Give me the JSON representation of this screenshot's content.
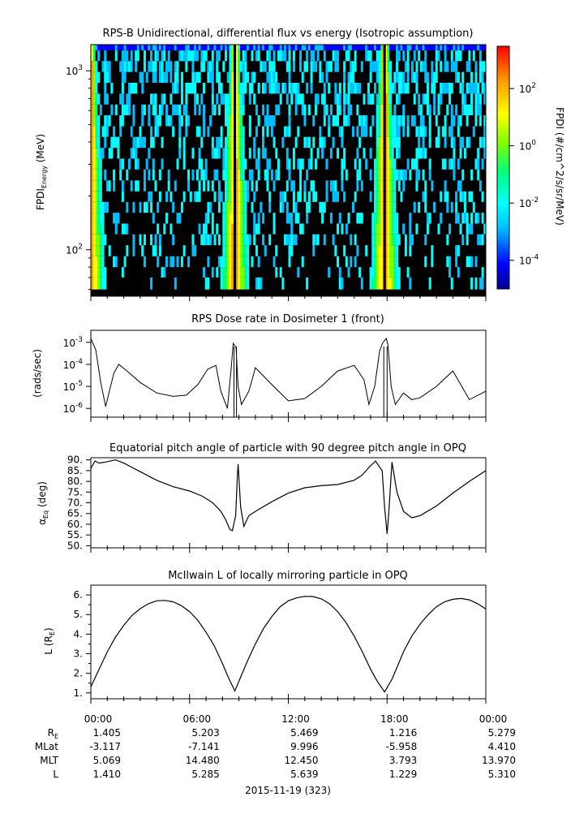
{
  "chart_data": [
    {
      "type": "heatmap",
      "title": "RPS-B  Unidirectional, differential flux vs energy (Isotropic assumption)",
      "ylabel": "FPDI",
      "ylabel_sub": "Energy",
      "ylabel_unit": " (MeV)",
      "yscale": "log",
      "ylim": [
        55,
        1400
      ],
      "ytick_labels": [
        {
          "base": "10",
          "exp": "3",
          "value": 1000
        },
        {
          "base": "10",
          "exp": "2",
          "value": 100
        }
      ],
      "xlim_hours": [
        0,
        24
      ],
      "energies_mev": [
        60,
        70,
        80,
        92,
        106,
        122,
        140,
        161,
        185,
        212,
        244,
        281,
        323,
        371,
        427,
        490,
        564,
        648,
        745,
        857,
        985,
        1133,
        1300
      ],
      "radiation_belt_passes_hours": [
        0.0,
        8.75,
        17.85
      ],
      "colorbar": {
        "label": "FPDI (#/cm^2/s/sr/MeV)",
        "scale": "log",
        "range": [
          1e-05,
          3000
        ],
        "ticks": [
          {
            "base": "10",
            "exp": "2",
            "value": 100
          },
          {
            "base": "10",
            "exp": "0",
            "value": 1
          },
          {
            "base": "10",
            "exp": "-2",
            "value": 0.01
          },
          {
            "base": "10",
            "exp": "-4",
            "value": 0.0001
          }
        ],
        "colors": [
          "#00008b",
          "#0000ff",
          "#00bfff",
          "#00ffff",
          "#00ff7f",
          "#7fff00",
          "#ffff00",
          "#ff9900",
          "#ff0000"
        ]
      }
    },
    {
      "type": "line",
      "title": "RPS  Dose rate in Dosimeter 1 (front)",
      "ylabel": "(rads/sec)",
      "yscale": "log",
      "ylim": [
        4e-07,
        0.0035
      ],
      "ytick_labels": [
        {
          "base": "10",
          "exp": "-3",
          "value": 0.001
        },
        {
          "base": "10",
          "exp": "-4",
          "value": 0.0001
        },
        {
          "base": "10",
          "exp": "-5",
          "value": 1e-05
        },
        {
          "base": "10",
          "exp": "-6",
          "value": 1e-06
        }
      ],
      "x_hours": [
        0.0,
        0.3,
        0.6,
        0.9,
        1.1,
        1.4,
        1.7,
        2.2,
        3.0,
        4.0,
        5.0,
        5.8,
        6.5,
        7.1,
        7.6,
        7.9,
        8.3,
        8.55,
        8.65,
        8.82,
        8.95,
        9.15,
        9.6,
        10.0,
        11.0,
        12.0,
        13.0,
        14.0,
        15.0,
        16.0,
        16.6,
        16.9,
        17.25,
        17.55,
        17.72,
        17.95,
        18.05,
        18.25,
        18.5,
        19.0,
        19.5,
        20.0,
        21.0,
        22.0,
        23.0,
        24.0
      ],
      "values": [
        0.0015,
        0.00045,
        1.5e-05,
        1.2e-06,
        5e-06,
        4e-05,
        0.0001,
        5e-05,
        1.5e-05,
        5e-06,
        3.5e-06,
        4e-06,
        1.2e-05,
        6e-05,
        9e-05,
        6e-06,
        1e-06,
        0.0001,
        0.0009,
        0.0006,
        1e-05,
        1.5e-06,
        6e-06,
        7e-05,
        1.2e-05,
        2.2e-06,
        2.8e-06,
        1e-05,
        5e-05,
        9e-05,
        2e-05,
        1.5e-06,
        1e-05,
        0.0004,
        0.0009,
        0.0015,
        0.0008,
        1e-05,
        1.5e-06,
        5e-06,
        2.5e-06,
        3e-06,
        1e-05,
        5e-05,
        2.5e-06,
        6e-06
      ]
    },
    {
      "type": "line",
      "title": "Equatorial pitch angle of particle with 90 degree pitch angle in OPQ",
      "ylabel": "α",
      "ylabel_sub": "Eq",
      "ylabel_unit": " (deg)",
      "ylim": [
        49,
        91
      ],
      "ytick_labels": [
        "90.",
        "85.",
        "80.",
        "75.",
        "70.",
        "65.",
        "60.",
        "55.",
        "50."
      ],
      "ytick_values": [
        90,
        85,
        80,
        75,
        70,
        65,
        60,
        55,
        50
      ],
      "x_hours": [
        0.0,
        0.25,
        0.5,
        0.9,
        1.5,
        2.0,
        2.5,
        3.0,
        4.0,
        5.0,
        6.0,
        6.8,
        7.4,
        7.9,
        8.2,
        8.45,
        8.6,
        8.8,
        8.9,
        8.95,
        9.1,
        9.3,
        9.6,
        10.0,
        11.0,
        12.0,
        13.0,
        14.0,
        15.0,
        16.0,
        16.5,
        16.9,
        17.3,
        17.7,
        17.85,
        18.0,
        18.1,
        18.3,
        18.6,
        19.0,
        19.5,
        20.0,
        21.0,
        22.0,
        23.0,
        24.0
      ],
      "values": [
        86.0,
        89.5,
        88.5,
        89.0,
        90.0,
        88.5,
        86.5,
        84.5,
        80.5,
        77.5,
        75.5,
        73.0,
        70.0,
        66.0,
        62.0,
        57.5,
        57.0,
        64.0,
        82.0,
        88.0,
        68.0,
        59.0,
        64.0,
        66.0,
        70.5,
        74.5,
        77.0,
        78.0,
        78.5,
        80.5,
        83.0,
        86.5,
        89.5,
        85.0,
        68.0,
        55.5,
        65.0,
        89.0,
        75.0,
        66.0,
        63.0,
        64.0,
        68.5,
        74.5,
        80.0,
        85.0
      ]
    },
    {
      "type": "line",
      "title": "McIlwain L of locally mirroring particle in OPQ",
      "ylabel": "L (R",
      "ylabel_sub": "E",
      "ylabel_unit": ")",
      "ylim": [
        0.7,
        6.5
      ],
      "ytick_labels": [
        "6.",
        "5.",
        "4.",
        "3.",
        "2.",
        "1."
      ],
      "ytick_values": [
        6,
        5,
        4,
        3,
        2,
        1
      ],
      "x_hours": [
        0.0,
        0.5,
        1.0,
        1.5,
        2.0,
        2.5,
        3.0,
        3.5,
        4.0,
        4.5,
        5.0,
        5.5,
        6.0,
        6.5,
        7.0,
        7.5,
        8.0,
        8.4,
        8.75,
        9.1,
        9.5,
        10.0,
        10.5,
        11.0,
        11.5,
        12.0,
        12.5,
        13.0,
        13.5,
        14.0,
        14.5,
        15.0,
        15.5,
        16.0,
        16.5,
        17.0,
        17.4,
        17.85,
        18.3,
        18.7,
        19.0,
        19.5,
        20.0,
        20.5,
        21.0,
        21.5,
        22.0,
        22.5,
        23.0,
        23.5,
        24.0
      ],
      "values": [
        1.3,
        2.2,
        3.1,
        3.85,
        4.45,
        4.95,
        5.3,
        5.55,
        5.7,
        5.72,
        5.65,
        5.45,
        5.15,
        4.7,
        4.1,
        3.4,
        2.5,
        1.7,
        1.1,
        1.8,
        2.6,
        3.5,
        4.3,
        4.9,
        5.4,
        5.7,
        5.85,
        5.93,
        5.92,
        5.8,
        5.55,
        5.15,
        4.6,
        3.9,
        3.1,
        2.2,
        1.6,
        1.05,
        1.7,
        2.5,
        3.1,
        3.9,
        4.5,
        5.0,
        5.4,
        5.65,
        5.78,
        5.82,
        5.75,
        5.55,
        5.28
      ]
    }
  ],
  "ephemeris": {
    "time_labels": [
      "00:00",
      "06:00",
      "12:00",
      "18:00",
      "00:00"
    ],
    "rows": [
      {
        "label": "R",
        "sub": "E",
        "values": [
          "1.405",
          "5.203",
          "5.469",
          "1.216",
          "5.279"
        ]
      },
      {
        "label": "MLat",
        "sub": "",
        "values": [
          "-3.117",
          "-7.141",
          "9.996",
          "-5.958",
          "4.410"
        ]
      },
      {
        "label": "MLT",
        "sub": "",
        "values": [
          "5.069",
          "14.480",
          "12.450",
          "3.793",
          "13.970"
        ]
      },
      {
        "label": "L",
        "sub": "",
        "values": [
          "1.410",
          "5.285",
          "5.639",
          "1.229",
          "5.310"
        ]
      }
    ],
    "date_label": "2015-11-19 (323)"
  }
}
